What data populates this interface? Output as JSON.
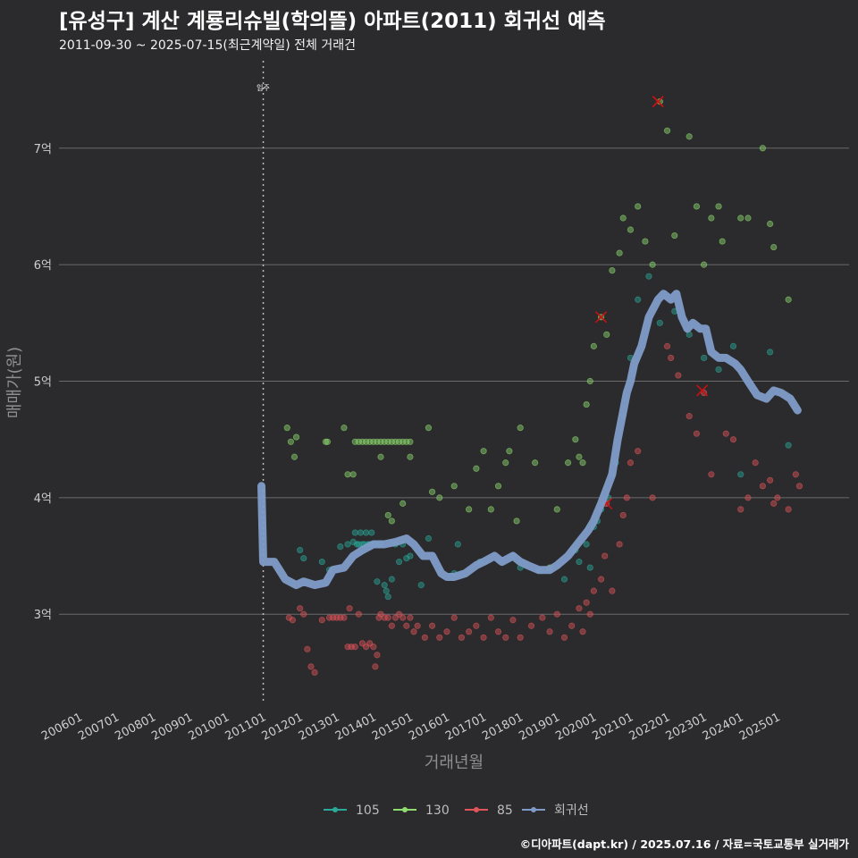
{
  "header": {
    "title": "[유성구] 계산 계룡리슈빌(학의뜰) 아파트(2011) 회귀선 예측",
    "subtitle": "2011-09-30 ~ 2025-07-15(최근계약일) 전체 거래건",
    "credit": "©디아파트(dapt.kr) / 2025.07.16 / 자료=국토교통부 실거래가"
  },
  "colors": {
    "background": "#2b2a2c",
    "grid": "#6b6b6b",
    "s105": "#2aa89a",
    "s130": "#8fdc6e",
    "s85": "#e0555a",
    "trend": "#7f9cc8",
    "cancel": "#cc1111"
  },
  "chart_data": {
    "type": "scatter",
    "title": "[유성구] 계산 계룡리슈빌(학의뜰) 아파트(2011) 회귀선 예측",
    "xlabel": "거래년월",
    "ylabel": "매매가(원)",
    "xlim": [
      2005.0,
      2027.0
    ],
    "ylim": [
      2.25,
      7.75
    ],
    "x_ticks": [
      2006,
      2007,
      2008,
      2009,
      2010,
      2011,
      2012,
      2013,
      2014,
      2015,
      2016,
      2017,
      2018,
      2019,
      2020,
      2021,
      2022,
      2023,
      2024,
      2025
    ],
    "x_tick_labels": [
      "200601",
      "200701",
      "200801",
      "200901",
      "201001",
      "201101",
      "201201",
      "201301",
      "201401",
      "201501",
      "201601",
      "201701",
      "201801",
      "201901",
      "202001",
      "202101",
      "202201",
      "202301",
      "202401",
      "202501"
    ],
    "y_ticks": [
      3,
      4,
      5,
      6,
      7
    ],
    "y_tick_labels": [
      "3억",
      "4억",
      "5억",
      "6억",
      "7억"
    ],
    "move_in": {
      "x": 2011.0,
      "label": "입주"
    },
    "legend": {
      "position": "bottom",
      "entries": [
        "105",
        "130",
        "85",
        "회귀선"
      ]
    },
    "series": [
      {
        "name": "105",
        "points": [
          [
            2012.0,
            3.55
          ],
          [
            2012.1,
            3.48
          ],
          [
            2012.6,
            3.45
          ],
          [
            2012.8,
            3.38
          ],
          [
            2013.1,
            3.58
          ],
          [
            2013.3,
            3.6
          ],
          [
            2013.45,
            3.62
          ],
          [
            2013.5,
            3.7
          ],
          [
            2013.55,
            3.6
          ],
          [
            2013.6,
            3.6
          ],
          [
            2013.65,
            3.7
          ],
          [
            2013.7,
            3.6
          ],
          [
            2013.75,
            3.6
          ],
          [
            2013.8,
            3.7
          ],
          [
            2013.85,
            3.6
          ],
          [
            2013.9,
            3.6
          ],
          [
            2013.95,
            3.7
          ],
          [
            2014.0,
            3.6
          ],
          [
            2014.05,
            3.6
          ],
          [
            2014.1,
            3.28
          ],
          [
            2014.15,
            3.6
          ],
          [
            2014.2,
            3.6
          ],
          [
            2014.3,
            3.25
          ],
          [
            2014.35,
            3.2
          ],
          [
            2014.4,
            3.15
          ],
          [
            2014.5,
            3.3
          ],
          [
            2014.6,
            3.6
          ],
          [
            2014.7,
            3.45
          ],
          [
            2014.8,
            3.6
          ],
          [
            2014.9,
            3.48
          ],
          [
            2015.0,
            3.5
          ],
          [
            2015.3,
            3.25
          ],
          [
            2015.5,
            3.65
          ],
          [
            2016.2,
            3.35
          ],
          [
            2016.3,
            3.6
          ],
          [
            2016.9,
            3.45
          ],
          [
            2017.8,
            3.5
          ],
          [
            2018.0,
            3.4
          ],
          [
            2018.5,
            3.38
          ],
          [
            2019.2,
            3.3
          ],
          [
            2019.5,
            3.55
          ],
          [
            2019.6,
            3.45
          ],
          [
            2019.8,
            3.6
          ],
          [
            2019.9,
            3.4
          ],
          [
            2020.0,
            3.75
          ],
          [
            2020.1,
            3.8
          ],
          [
            2020.2,
            3.9
          ],
          [
            2020.3,
            3.95
          ],
          [
            2020.4,
            4.0
          ],
          [
            2020.5,
            4.2
          ],
          [
            2020.6,
            4.3
          ],
          [
            2020.8,
            4.7
          ],
          [
            2021.0,
            5.2
          ],
          [
            2021.2,
            5.7
          ],
          [
            2021.5,
            5.9
          ],
          [
            2021.8,
            5.5
          ],
          [
            2022.2,
            5.6
          ],
          [
            2022.6,
            5.4
          ],
          [
            2023.0,
            5.2
          ],
          [
            2023.4,
            5.1
          ],
          [
            2023.8,
            5.3
          ],
          [
            2024.0,
            4.2
          ],
          [
            2024.8,
            5.25
          ],
          [
            2025.3,
            4.45
          ]
        ]
      },
      {
        "name": "130",
        "points": [
          [
            2011.65,
            4.6
          ],
          [
            2011.75,
            4.48
          ],
          [
            2011.85,
            4.35
          ],
          [
            2011.9,
            4.52
          ],
          [
            2012.7,
            4.48
          ],
          [
            2012.75,
            4.48
          ],
          [
            2013.2,
            4.6
          ],
          [
            2013.3,
            4.2
          ],
          [
            2013.45,
            4.2
          ],
          [
            2013.5,
            4.48
          ],
          [
            2013.6,
            4.48
          ],
          [
            2013.7,
            4.48
          ],
          [
            2013.8,
            4.48
          ],
          [
            2013.9,
            4.48
          ],
          [
            2014.0,
            4.48
          ],
          [
            2014.1,
            4.48
          ],
          [
            2014.2,
            4.48
          ],
          [
            2014.3,
            4.48
          ],
          [
            2014.4,
            4.48
          ],
          [
            2014.5,
            4.48
          ],
          [
            2014.6,
            4.48
          ],
          [
            2014.7,
            4.48
          ],
          [
            2014.8,
            4.48
          ],
          [
            2014.9,
            4.48
          ],
          [
            2015.0,
            4.48
          ],
          [
            2014.2,
            4.35
          ],
          [
            2014.4,
            3.85
          ],
          [
            2014.5,
            3.8
          ],
          [
            2014.8,
            3.95
          ],
          [
            2015.0,
            4.35
          ],
          [
            2015.5,
            4.6
          ],
          [
            2015.6,
            4.05
          ],
          [
            2015.8,
            4.0
          ],
          [
            2016.2,
            4.1
          ],
          [
            2016.6,
            3.9
          ],
          [
            2016.8,
            4.25
          ],
          [
            2017.0,
            4.4
          ],
          [
            2017.2,
            3.9
          ],
          [
            2017.4,
            4.1
          ],
          [
            2017.6,
            4.3
          ],
          [
            2017.7,
            4.4
          ],
          [
            2017.9,
            3.8
          ],
          [
            2018.0,
            4.6
          ],
          [
            2018.4,
            4.3
          ],
          [
            2018.8,
            3.4
          ],
          [
            2019.0,
            3.9
          ],
          [
            2019.3,
            4.3
          ],
          [
            2019.5,
            4.5
          ],
          [
            2019.6,
            4.35
          ],
          [
            2019.7,
            4.3
          ],
          [
            2019.8,
            4.8
          ],
          [
            2019.9,
            5.0
          ],
          [
            2020.0,
            5.3
          ],
          [
            2020.2,
            5.55
          ],
          [
            2020.35,
            5.4
          ],
          [
            2020.5,
            5.95
          ],
          [
            2020.7,
            6.1
          ],
          [
            2020.8,
            6.4
          ],
          [
            2021.0,
            6.3
          ],
          [
            2021.2,
            6.5
          ],
          [
            2021.4,
            6.2
          ],
          [
            2021.6,
            6.0
          ],
          [
            2021.8,
            7.4
          ],
          [
            2022.0,
            7.15
          ],
          [
            2022.2,
            6.25
          ],
          [
            2022.6,
            7.1
          ],
          [
            2022.8,
            6.5
          ],
          [
            2023.0,
            6.0
          ],
          [
            2023.2,
            6.4
          ],
          [
            2023.4,
            6.5
          ],
          [
            2023.5,
            6.2
          ],
          [
            2024.0,
            6.4
          ],
          [
            2024.2,
            6.4
          ],
          [
            2024.6,
            7.0
          ],
          [
            2024.8,
            6.35
          ],
          [
            2024.9,
            6.15
          ],
          [
            2025.3,
            5.7
          ]
        ]
      },
      {
        "name": "85",
        "points": [
          [
            2011.7,
            2.97
          ],
          [
            2011.8,
            2.95
          ],
          [
            2012.0,
            3.05
          ],
          [
            2012.1,
            3.0
          ],
          [
            2012.2,
            2.7
          ],
          [
            2012.3,
            2.55
          ],
          [
            2012.4,
            2.5
          ],
          [
            2012.6,
            2.95
          ],
          [
            2012.8,
            2.97
          ],
          [
            2012.9,
            2.97
          ],
          [
            2013.0,
            2.97
          ],
          [
            2013.1,
            2.97
          ],
          [
            2013.2,
            2.97
          ],
          [
            2013.3,
            2.72
          ],
          [
            2013.35,
            3.05
          ],
          [
            2013.4,
            2.72
          ],
          [
            2013.5,
            2.72
          ],
          [
            2013.6,
            3.0
          ],
          [
            2013.7,
            2.75
          ],
          [
            2013.8,
            2.72
          ],
          [
            2013.9,
            2.75
          ],
          [
            2014.0,
            2.72
          ],
          [
            2014.05,
            2.55
          ],
          [
            2014.1,
            2.65
          ],
          [
            2014.15,
            2.97
          ],
          [
            2014.2,
            3.0
          ],
          [
            2014.3,
            2.97
          ],
          [
            2014.4,
            2.97
          ],
          [
            2014.5,
            2.9
          ],
          [
            2014.6,
            2.97
          ],
          [
            2014.7,
            3.0
          ],
          [
            2014.8,
            2.97
          ],
          [
            2014.9,
            2.9
          ],
          [
            2015.0,
            2.97
          ],
          [
            2015.1,
            2.85
          ],
          [
            2015.2,
            2.9
          ],
          [
            2015.4,
            2.8
          ],
          [
            2015.6,
            2.9
          ],
          [
            2015.8,
            2.8
          ],
          [
            2016.0,
            2.85
          ],
          [
            2016.2,
            2.97
          ],
          [
            2016.4,
            2.8
          ],
          [
            2016.6,
            2.85
          ],
          [
            2016.8,
            2.9
          ],
          [
            2017.0,
            2.8
          ],
          [
            2017.2,
            2.97
          ],
          [
            2017.4,
            2.85
          ],
          [
            2017.6,
            2.8
          ],
          [
            2017.8,
            2.95
          ],
          [
            2018.0,
            2.8
          ],
          [
            2018.3,
            2.9
          ],
          [
            2018.6,
            2.97
          ],
          [
            2018.8,
            2.85
          ],
          [
            2019.0,
            3.0
          ],
          [
            2019.2,
            2.8
          ],
          [
            2019.4,
            2.9
          ],
          [
            2019.6,
            3.05
          ],
          [
            2019.7,
            2.85
          ],
          [
            2019.8,
            3.1
          ],
          [
            2019.9,
            3.0
          ],
          [
            2020.0,
            3.2
          ],
          [
            2020.2,
            3.3
          ],
          [
            2020.3,
            3.5
          ],
          [
            2020.35,
            3.95
          ],
          [
            2020.5,
            3.2
          ],
          [
            2020.7,
            3.6
          ],
          [
            2020.8,
            3.85
          ],
          [
            2020.9,
            4.0
          ],
          [
            2021.0,
            4.3
          ],
          [
            2021.2,
            4.4
          ],
          [
            2021.6,
            4.0
          ],
          [
            2022.0,
            5.3
          ],
          [
            2022.1,
            5.2
          ],
          [
            2022.3,
            5.05
          ],
          [
            2022.6,
            4.7
          ],
          [
            2022.8,
            4.55
          ],
          [
            2023.0,
            4.9
          ],
          [
            2023.2,
            4.2
          ],
          [
            2023.6,
            4.55
          ],
          [
            2023.8,
            4.5
          ],
          [
            2024.0,
            3.9
          ],
          [
            2024.2,
            4.0
          ],
          [
            2024.4,
            4.3
          ],
          [
            2024.6,
            4.1
          ],
          [
            2024.8,
            4.15
          ],
          [
            2024.9,
            3.95
          ],
          [
            2025.0,
            4.0
          ],
          [
            2025.3,
            3.9
          ],
          [
            2025.5,
            4.2
          ],
          [
            2025.6,
            4.1
          ]
        ]
      }
    ],
    "cancelled": [
      [
        2021.75,
        7.4
      ],
      [
        2020.2,
        5.55
      ],
      [
        2022.95,
        4.92
      ],
      [
        2020.35,
        3.95
      ]
    ],
    "trend": [
      [
        2010.95,
        4.1
      ],
      [
        2011.0,
        3.45
      ],
      [
        2011.3,
        3.45
      ],
      [
        2011.6,
        3.3
      ],
      [
        2011.9,
        3.25
      ],
      [
        2012.1,
        3.28
      ],
      [
        2012.4,
        3.25
      ],
      [
        2012.7,
        3.27
      ],
      [
        2012.9,
        3.38
      ],
      [
        2013.2,
        3.4
      ],
      [
        2013.45,
        3.5
      ],
      [
        2013.7,
        3.55
      ],
      [
        2014.0,
        3.6
      ],
      [
        2014.3,
        3.6
      ],
      [
        2014.6,
        3.62
      ],
      [
        2014.9,
        3.65
      ],
      [
        2015.1,
        3.6
      ],
      [
        2015.35,
        3.5
      ],
      [
        2015.6,
        3.5
      ],
      [
        2015.85,
        3.35
      ],
      [
        2016.0,
        3.32
      ],
      [
        2016.2,
        3.32
      ],
      [
        2016.5,
        3.35
      ],
      [
        2016.8,
        3.42
      ],
      [
        2017.0,
        3.45
      ],
      [
        2017.3,
        3.5
      ],
      [
        2017.5,
        3.45
      ],
      [
        2017.8,
        3.5
      ],
      [
        2018.0,
        3.45
      ],
      [
        2018.2,
        3.42
      ],
      [
        2018.5,
        3.38
      ],
      [
        2018.8,
        3.38
      ],
      [
        2019.0,
        3.42
      ],
      [
        2019.3,
        3.5
      ],
      [
        2019.6,
        3.62
      ],
      [
        2019.85,
        3.72
      ],
      [
        2020.0,
        3.8
      ],
      [
        2020.2,
        3.95
      ],
      [
        2020.5,
        4.2
      ],
      [
        2020.65,
        4.5
      ],
      [
        2020.9,
        4.9
      ],
      [
        2021.0,
        5.0
      ],
      [
        2021.1,
        5.15
      ],
      [
        2021.3,
        5.3
      ],
      [
        2021.5,
        5.55
      ],
      [
        2021.75,
        5.7
      ],
      [
        2021.9,
        5.75
      ],
      [
        2022.1,
        5.7
      ],
      [
        2022.25,
        5.75
      ],
      [
        2022.4,
        5.55
      ],
      [
        2022.55,
        5.45
      ],
      [
        2022.7,
        5.5
      ],
      [
        2022.9,
        5.45
      ],
      [
        2023.05,
        5.45
      ],
      [
        2023.2,
        5.25
      ],
      [
        2023.4,
        5.2
      ],
      [
        2023.6,
        5.2
      ],
      [
        2023.85,
        5.15
      ],
      [
        2024.0,
        5.1
      ],
      [
        2024.2,
        5.0
      ],
      [
        2024.45,
        4.88
      ],
      [
        2024.7,
        4.85
      ],
      [
        2024.9,
        4.92
      ],
      [
        2025.1,
        4.9
      ],
      [
        2025.35,
        4.85
      ],
      [
        2025.55,
        4.75
      ]
    ]
  }
}
